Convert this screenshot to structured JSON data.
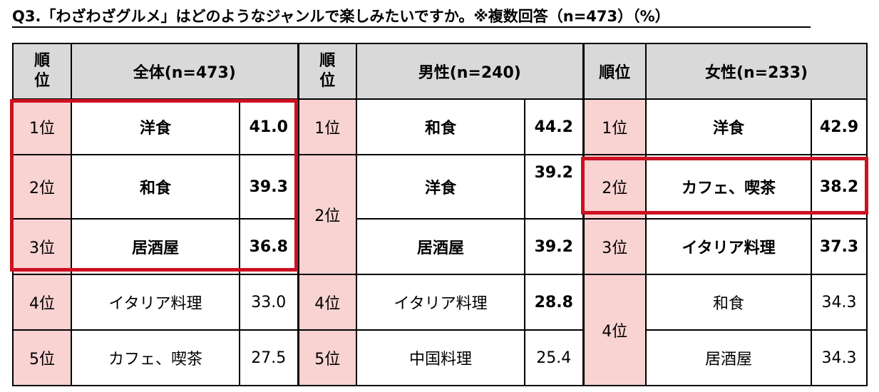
{
  "title": "Q3.「わざわざグルメ」はどのようなジャンルで楽しみたいですか。※複数回答（n=473）（%）",
  "headers": {
    "rank_vertical": "順\n位",
    "rank_label": "順位",
    "overall": "全体(n=473)",
    "male": "男性(n=240)",
    "female": "女性(n=233)"
  },
  "overall": [
    {
      "rank": "1位",
      "genre": "洋食",
      "value": "41.0"
    },
    {
      "rank": "2位",
      "genre": "和食",
      "value": "39.3"
    },
    {
      "rank": "3位",
      "genre": "居酒屋",
      "value": "36.8"
    },
    {
      "rank": "4位",
      "genre": "イタリア料理",
      "value": "33.0"
    },
    {
      "rank": "5位",
      "genre": "カフェ、喫茶",
      "value": "27.5"
    }
  ],
  "male": [
    {
      "rank": "1位",
      "genre": "和食",
      "value": "44.2"
    },
    {
      "rank": "2位",
      "genre": "洋食",
      "value": "39.2"
    },
    {
      "rank": "",
      "genre": "居酒屋",
      "value": "39.2"
    },
    {
      "rank": "4位",
      "genre": "イタリア料理",
      "value": "28.8"
    },
    {
      "rank": "5位",
      "genre": "中国料理",
      "value": "25.4"
    }
  ],
  "female": [
    {
      "rank": "1位",
      "genre": "洋食",
      "value": "42.9"
    },
    {
      "rank": "2位",
      "genre": "カフェ、喫茶",
      "value": "38.2"
    },
    {
      "rank": "3位",
      "genre": "イタリア料理",
      "value": "37.3"
    },
    {
      "rank": "4位",
      "genre": "和食",
      "value": "34.3"
    },
    {
      "rank": "",
      "genre": "居酒屋",
      "value": "34.3"
    }
  ],
  "colors": {
    "header_bg": "#d9d9d9",
    "rank_bg": "#f9d2d2",
    "highlight": "#cc1122"
  }
}
